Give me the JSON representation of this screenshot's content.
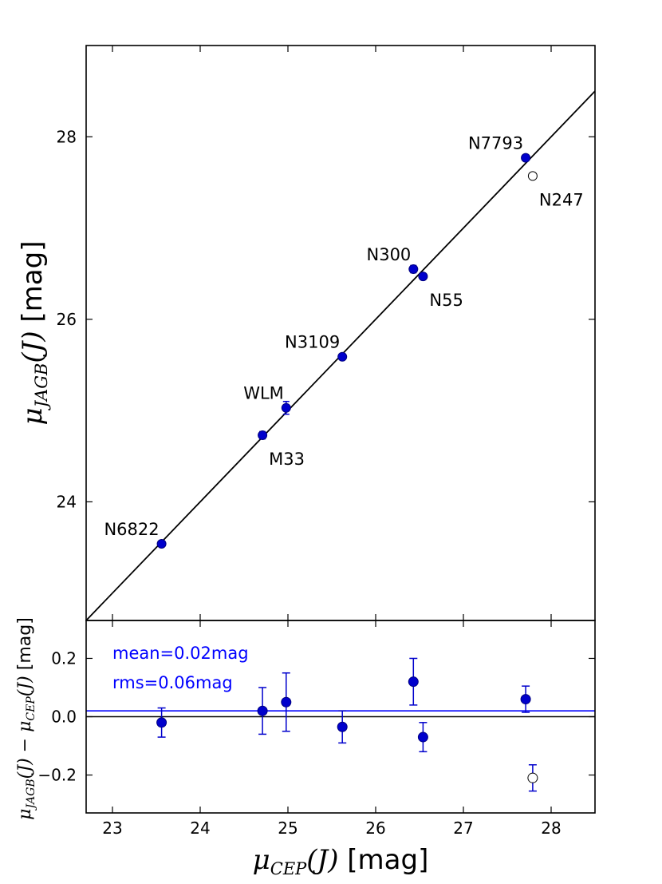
{
  "chart_data": [
    {
      "panel": "top",
      "type": "scatter",
      "ylabel": "μJAGB(J) [mag]",
      "ylabel_parts": {
        "mu": "μ",
        "sub": "JAGB",
        "arg": "(J)",
        "unit": " [mag]"
      },
      "xlim": [
        22.7,
        28.5
      ],
      "ylim": [
        22.7,
        29.0
      ],
      "yticks": [
        24,
        26,
        28
      ],
      "ytick_labels": [
        "24",
        "26",
        "28"
      ],
      "grid": false,
      "reference_line": {
        "type": "one-to-one",
        "color": "#000000"
      },
      "points": [
        {
          "label": "N6822",
          "x": 23.56,
          "y": 23.54,
          "yerr": 0.03,
          "filled": true,
          "label_pos": "upper-left"
        },
        {
          "label": "M33",
          "x": 24.71,
          "y": 24.73,
          "yerr": 0.04,
          "filled": true,
          "label_pos": "lower-right"
        },
        {
          "label": "WLM",
          "x": 24.98,
          "y": 25.03,
          "yerr": 0.07,
          "filled": true,
          "label_pos": "upper-left"
        },
        {
          "label": "N3109",
          "x": 25.62,
          "y": 25.59,
          "yerr": 0.03,
          "filled": true,
          "label_pos": "upper-left"
        },
        {
          "label": "N300",
          "x": 26.43,
          "y": 26.55,
          "yerr": 0.04,
          "filled": true,
          "label_pos": "upper-left"
        },
        {
          "label": "N55",
          "x": 26.54,
          "y": 26.47,
          "yerr": 0.03,
          "filled": true,
          "label_pos": "lower-right"
        },
        {
          "label": "N7793",
          "x": 27.71,
          "y": 27.77,
          "yerr": 0.03,
          "filled": true,
          "label_pos": "upper-left"
        },
        {
          "label": "N247",
          "x": 27.79,
          "y": 27.57,
          "yerr": 0.03,
          "filled": false,
          "label_pos": "lower-right"
        }
      ]
    },
    {
      "panel": "bottom",
      "type": "scatter",
      "xlabel": "μCEP(J) [mag]",
      "xlabel_parts": {
        "mu": "μ",
        "sub": "CEP",
        "arg": "(J)",
        "unit": " [mag]"
      },
      "ylabel": "μJAGB(J) − μCEP(J) [mag]",
      "ylabel_parts": {
        "mu1": "μ",
        "sub1": "JAGB",
        "arg1": "(J)",
        "minus": " − ",
        "mu2": "μ",
        "sub2": "CEP",
        "arg2": "(J)",
        "unit": " [mag]"
      },
      "xlim": [
        22.7,
        28.5
      ],
      "ylim": [
        -0.33,
        0.33
      ],
      "xticks": [
        23,
        24,
        25,
        26,
        27,
        28
      ],
      "xtick_labels": [
        "23",
        "24",
        "25",
        "26",
        "27",
        "28"
      ],
      "yticks": [
        -0.2,
        0.0,
        0.2
      ],
      "ytick_labels": [
        "−0.2",
        "0.0",
        "0.2"
      ],
      "grid": false,
      "mean_line": {
        "value": 0.02,
        "color": "#0000ff"
      },
      "zero_line": {
        "value": 0.0,
        "color": "#000000"
      },
      "annotations": [
        "mean=0.02mag",
        "rms=0.06mag"
      ],
      "points": [
        {
          "x": 23.56,
          "y": -0.02,
          "yerr": 0.05,
          "filled": true
        },
        {
          "x": 24.71,
          "y": 0.02,
          "yerr": 0.08,
          "filled": true
        },
        {
          "x": 24.98,
          "y": 0.05,
          "yerr": 0.1,
          "filled": true
        },
        {
          "x": 25.62,
          "y": -0.035,
          "yerr": 0.055,
          "filled": true
        },
        {
          "x": 26.43,
          "y": 0.12,
          "yerr": 0.08,
          "filled": true
        },
        {
          "x": 26.54,
          "y": -0.07,
          "yerr": 0.05,
          "filled": true
        },
        {
          "x": 27.71,
          "y": 0.06,
          "yerr": 0.045,
          "filled": true
        },
        {
          "x": 27.79,
          "y": -0.21,
          "yerr": 0.045,
          "filled": false
        }
      ]
    }
  ],
  "colors": {
    "point": "#0000cc",
    "point_edge": "#000080",
    "error_bar": "#0000cc",
    "mean_line": "#0000ff",
    "annotation": "#0000ff",
    "axes": "#000000"
  }
}
